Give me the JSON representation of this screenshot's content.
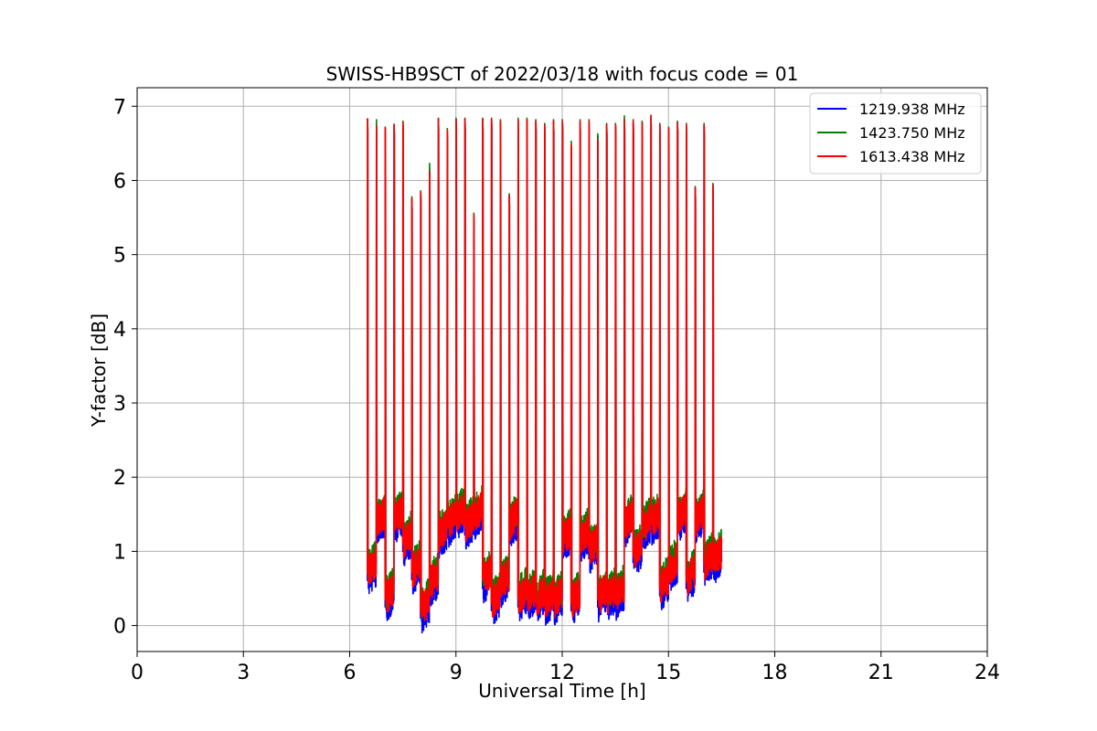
{
  "chart_data": {
    "type": "line",
    "title": "SWISS-HB9SCT of 2022/03/18 with focus code = 01",
    "xlabel": "Universal Time [h]",
    "ylabel": "Y-factor [dB]",
    "xlim": [
      0,
      24
    ],
    "ylim": [
      -0.35,
      7.25
    ],
    "xticks": [
      0,
      3,
      6,
      9,
      12,
      15,
      18,
      21,
      24
    ],
    "xtick_labels": [
      "0",
      "3",
      "6",
      "9",
      "12",
      "15",
      "18",
      "21",
      "24"
    ],
    "yticks": [
      0,
      1,
      2,
      3,
      4,
      5,
      6,
      7
    ],
    "ytick_labels": [
      "0",
      "1",
      "2",
      "3",
      "4",
      "5",
      "6",
      "7"
    ],
    "grid": true,
    "legend_position": "top-right",
    "observation_start_h": 6.5,
    "observation_end_h": 16.5,
    "spike_times_h": [
      6.5,
      6.75,
      7.0,
      7.25,
      7.5,
      7.75,
      8.0,
      8.25,
      8.5,
      8.75,
      9.0,
      9.25,
      9.5,
      9.75,
      10.0,
      10.25,
      10.5,
      10.75,
      11.0,
      11.25,
      11.5,
      11.75,
      12.0,
      12.25,
      12.5,
      12.75,
      13.0,
      13.25,
      13.5,
      13.75,
      14.0,
      14.25,
      14.5,
      14.75,
      15.0,
      15.25,
      15.5,
      15.75,
      16.0,
      16.25
    ],
    "spike_peaks": {
      "1219.938 MHz": [
        6.83,
        6.75,
        6.7,
        6.75,
        6.78,
        5.76,
        5.84,
        6.15,
        6.83,
        6.68,
        6.82,
        6.83,
        5.54,
        6.83,
        6.83,
        6.8,
        5.8,
        6.82,
        6.82,
        6.8,
        6.75,
        6.8,
        6.8,
        6.45,
        6.8,
        6.8,
        6.6,
        6.75,
        6.75,
        6.82,
        6.8,
        6.78,
        6.85,
        6.75,
        6.7,
        6.78,
        6.75,
        5.9,
        6.75,
        5.94
      ],
      "1423.750 MHz": [
        6.83,
        6.82,
        6.72,
        6.76,
        6.8,
        5.78,
        5.86,
        6.23,
        6.84,
        6.7,
        6.84,
        6.84,
        5.56,
        6.84,
        6.84,
        6.82,
        5.82,
        6.84,
        6.84,
        6.82,
        6.77,
        6.82,
        6.82,
        6.53,
        6.82,
        6.82,
        6.63,
        6.77,
        6.77,
        6.87,
        6.82,
        6.8,
        6.87,
        6.77,
        6.72,
        6.8,
        6.77,
        5.92,
        6.77,
        5.96
      ],
      "1613.438 MHz": [
        6.83,
        6.73,
        6.71,
        6.75,
        6.78,
        5.76,
        5.84,
        6.12,
        6.83,
        6.68,
        6.82,
        6.83,
        5.54,
        6.83,
        6.83,
        6.8,
        5.8,
        6.82,
        6.82,
        6.8,
        6.75,
        6.8,
        6.8,
        6.48,
        6.8,
        6.8,
        6.55,
        6.75,
        6.75,
        6.82,
        6.8,
        6.78,
        6.88,
        6.75,
        6.7,
        6.78,
        6.75,
        5.9,
        6.75,
        5.94
      ]
    },
    "baseline_segments": [
      {
        "start": 6.5,
        "end": 6.75,
        "level": 0.7
      },
      {
        "start": 6.75,
        "end": 7.0,
        "level": 1.38
      },
      {
        "start": 7.0,
        "end": 7.25,
        "level": 0.35
      },
      {
        "start": 7.25,
        "end": 7.5,
        "level": 1.4
      },
      {
        "start": 7.5,
        "end": 7.75,
        "level": 1.1
      },
      {
        "start": 7.75,
        "end": 8.0,
        "level": 0.72
      },
      {
        "start": 8.0,
        "end": 8.25,
        "level": 0.2
      },
      {
        "start": 8.25,
        "end": 8.5,
        "level": 0.55
      },
      {
        "start": 8.5,
        "end": 8.75,
        "level": 1.2
      },
      {
        "start": 8.75,
        "end": 9.0,
        "level": 1.35
      },
      {
        "start": 9.0,
        "end": 9.25,
        "level": 1.45
      },
      {
        "start": 9.25,
        "end": 9.5,
        "level": 1.32
      },
      {
        "start": 9.5,
        "end": 9.75,
        "level": 1.45
      },
      {
        "start": 9.75,
        "end": 10.0,
        "level": 0.6
      },
      {
        "start": 10.0,
        "end": 10.25,
        "level": 0.3
      },
      {
        "start": 10.25,
        "end": 10.5,
        "level": 0.55
      },
      {
        "start": 10.5,
        "end": 10.75,
        "level": 1.35
      },
      {
        "start": 10.75,
        "end": 11.0,
        "level": 0.35
      },
      {
        "start": 11.0,
        "end": 11.25,
        "level": 0.35
      },
      {
        "start": 11.25,
        "end": 11.5,
        "level": 0.32
      },
      {
        "start": 11.5,
        "end": 11.75,
        "level": 0.3
      },
      {
        "start": 11.75,
        "end": 12.0,
        "level": 0.3
      },
      {
        "start": 12.0,
        "end": 12.25,
        "level": 1.15
      },
      {
        "start": 12.25,
        "end": 12.5,
        "level": 0.3
      },
      {
        "start": 12.5,
        "end": 12.75,
        "level": 1.15
      },
      {
        "start": 12.75,
        "end": 13.0,
        "level": 1.0
      },
      {
        "start": 13.0,
        "end": 13.25,
        "level": 0.35
      },
      {
        "start": 13.25,
        "end": 13.5,
        "level": 0.35
      },
      {
        "start": 13.5,
        "end": 13.75,
        "level": 0.38
      },
      {
        "start": 13.75,
        "end": 14.0,
        "level": 1.35
      },
      {
        "start": 14.0,
        "end": 14.25,
        "level": 0.95
      },
      {
        "start": 14.25,
        "end": 14.5,
        "level": 1.3
      },
      {
        "start": 14.5,
        "end": 14.75,
        "level": 1.38
      },
      {
        "start": 14.75,
        "end": 15.0,
        "level": 0.5
      },
      {
        "start": 15.0,
        "end": 15.25,
        "level": 0.75
      },
      {
        "start": 15.25,
        "end": 15.5,
        "level": 1.42
      },
      {
        "start": 15.5,
        "end": 15.75,
        "level": 0.6
      },
      {
        "start": 15.75,
        "end": 16.0,
        "level": 1.4
      },
      {
        "start": 16.0,
        "end": 16.25,
        "level": 0.82
      },
      {
        "start": 16.25,
        "end": 16.5,
        "level": 0.85
      }
    ],
    "series": [
      {
        "name": "1219.938 MHz",
        "color": "#0000ff",
        "offset": -0.1
      },
      {
        "name": "1423.750 MHz",
        "color": "#008000",
        "offset": 0.08
      },
      {
        "name": "1613.438 MHz",
        "color": "#ff0000",
        "offset": 0.0
      }
    ]
  }
}
